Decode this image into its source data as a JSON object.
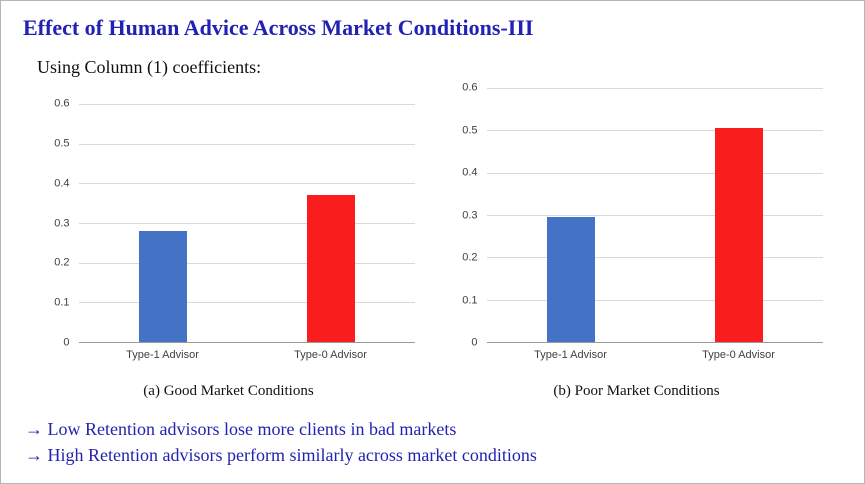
{
  "slide": {
    "title": "Effect of Human Advice Across Market Conditions-III",
    "subtitle": "Using Column (1) coefficients:",
    "notes": [
      "→ Low Retention advisors lose more clients in bad markets",
      "→ High Retention advisors perform similarly across market conditions"
    ],
    "accent_color": "#2222b2"
  },
  "chart_data": [
    {
      "type": "bar",
      "title": "(a) Good Market Conditions",
      "categories": [
        "Type-1 Advisor",
        "Type-0 Advisor"
      ],
      "values": [
        0.28,
        0.37
      ],
      "bar_colors": [
        "#4472c4",
        "#fa1d1d"
      ],
      "ylim": [
        0,
        0.6
      ],
      "yticks": [
        "0",
        "0.1",
        "0.2",
        "0.3",
        "0.4",
        "0.5",
        "0.6"
      ],
      "xlabel": "",
      "ylabel": "",
      "grid": true,
      "legend": "none"
    },
    {
      "type": "bar",
      "title": "(b) Poor Market Conditions",
      "categories": [
        "Type-1 Advisor",
        "Type-0 Advisor"
      ],
      "values": [
        0.295,
        0.505
      ],
      "bar_colors": [
        "#4472c4",
        "#fa1d1d"
      ],
      "ylim": [
        0,
        0.6
      ],
      "yticks": [
        "0",
        "0.1",
        "0.2",
        "0.3",
        "0.4",
        "0.5",
        "0.6"
      ],
      "xlabel": "",
      "ylabel": "",
      "grid": true,
      "legend": "none"
    }
  ]
}
